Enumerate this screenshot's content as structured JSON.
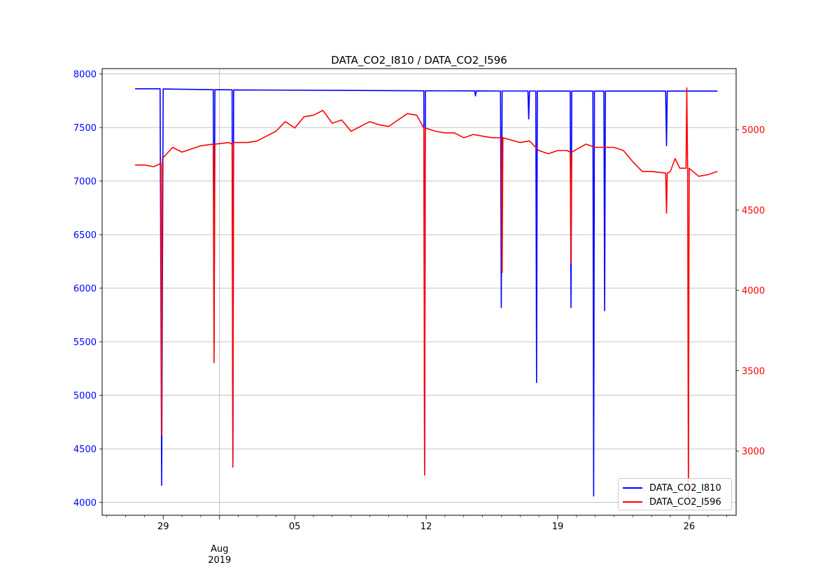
{
  "chart_data": {
    "type": "line",
    "title": "DATA_CO2_I810 / DATA_CO2_I596",
    "xlabel": "",
    "x_range": [
      "2019-07-25T18:00",
      "2019-08-28T12:00"
    ],
    "x_major_ticks": [
      {
        "date": "2019-07-29",
        "label": "29"
      },
      {
        "date": "2019-08-01",
        "label": "Aug\n2019"
      },
      {
        "date": "2019-08-05",
        "label": "05"
      },
      {
        "date": "2019-08-12",
        "label": "12"
      },
      {
        "date": "2019-08-19",
        "label": "19"
      },
      {
        "date": "2019-08-26",
        "label": "26"
      }
    ],
    "y_left": {
      "range": [
        3880,
        8050
      ],
      "ticks": [
        4000,
        4500,
        5000,
        5500,
        6000,
        6500,
        7000,
        7500,
        8000
      ],
      "color": "#0000ff"
    },
    "y_right": {
      "range": [
        2600,
        5380
      ],
      "ticks": [
        3000,
        3500,
        4000,
        4500,
        5000
      ],
      "color": "#ff0000"
    },
    "grid": true,
    "legend_position": "lower-right",
    "series": [
      {
        "name": "DATA_CO2_I810",
        "color": "#0000ff",
        "axis": "left",
        "points": [
          [
            "2019-07-27T12:00",
            7862
          ],
          [
            "2019-07-28T20:00",
            7862
          ],
          [
            "2019-07-28T22:00",
            4160
          ],
          [
            "2019-07-29T00:00",
            7860
          ],
          [
            "2019-07-31T16:00",
            7853
          ],
          [
            "2019-07-31T17:00",
            5500
          ],
          [
            "2019-07-31T18:00",
            7853
          ],
          [
            "2019-08-01T16:00",
            7852
          ],
          [
            "2019-08-01T17:00",
            4400
          ],
          [
            "2019-08-01T18:00",
            7851
          ],
          [
            "2019-08-11T21:00",
            7843
          ],
          [
            "2019-08-11T22:00",
            4300
          ],
          [
            "2019-08-11T23:00",
            7843
          ],
          [
            "2019-08-14T14:00",
            7842
          ],
          [
            "2019-08-14T15:00",
            7795
          ],
          [
            "2019-08-14T16:00",
            7842
          ],
          [
            "2019-08-15T23:00",
            7841
          ],
          [
            "2019-08-16T00:00",
            5820
          ],
          [
            "2019-08-16T01:00",
            7841
          ],
          [
            "2019-08-17T10:00",
            7841
          ],
          [
            "2019-08-17T11:00",
            7580
          ],
          [
            "2019-08-17T12:00",
            7841
          ],
          [
            "2019-08-17T20:00",
            7841
          ],
          [
            "2019-08-17T21:00",
            5120
          ],
          [
            "2019-08-17T22:00",
            7841
          ],
          [
            "2019-08-19T16:00",
            7840
          ],
          [
            "2019-08-19T17:00",
            5820
          ],
          [
            "2019-08-19T18:00",
            7840
          ],
          [
            "2019-08-20T21:00",
            7840
          ],
          [
            "2019-08-20T22:00",
            4060
          ],
          [
            "2019-08-20T23:00",
            7840
          ],
          [
            "2019-08-21T11:00",
            7840
          ],
          [
            "2019-08-21T12:00",
            5790
          ],
          [
            "2019-08-21T13:00",
            7840
          ],
          [
            "2019-08-24T18:00",
            7840
          ],
          [
            "2019-08-24T19:00",
            7330
          ],
          [
            "2019-08-24T20:00",
            7840
          ],
          [
            "2019-08-27T12:00",
            7840
          ]
        ]
      },
      {
        "name": "DATA_CO2_I596",
        "color": "#ff0000",
        "axis": "right",
        "points": [
          [
            "2019-07-27T12:00",
            4780
          ],
          [
            "2019-07-28T00:00",
            4780
          ],
          [
            "2019-07-28T12:00",
            4770
          ],
          [
            "2019-07-28T21:00",
            4790
          ],
          [
            "2019-07-28T22:00",
            3100
          ],
          [
            "2019-07-28T23:00",
            4820
          ],
          [
            "2019-07-29T12:00",
            4890
          ],
          [
            "2019-07-30T00:00",
            4860
          ],
          [
            "2019-07-30T12:00",
            4880
          ],
          [
            "2019-07-31T00:00",
            4900
          ],
          [
            "2019-07-31T16:00",
            4910
          ],
          [
            "2019-07-31T17:00",
            3550
          ],
          [
            "2019-07-31T18:00",
            4910
          ],
          [
            "2019-08-01T12:00",
            4920
          ],
          [
            "2019-08-01T16:00",
            4910
          ],
          [
            "2019-08-01T17:00",
            2900
          ],
          [
            "2019-08-01T18:00",
            4920
          ],
          [
            "2019-08-02T12:00",
            4920
          ],
          [
            "2019-08-03T00:00",
            4930
          ],
          [
            "2019-08-03T12:00",
            4960
          ],
          [
            "2019-08-04T00:00",
            4990
          ],
          [
            "2019-08-04T12:00",
            5050
          ],
          [
            "2019-08-05T00:00",
            5010
          ],
          [
            "2019-08-05T12:00",
            5080
          ],
          [
            "2019-08-06T00:00",
            5090
          ],
          [
            "2019-08-06T12:00",
            5120
          ],
          [
            "2019-08-07T00:00",
            5040
          ],
          [
            "2019-08-07T12:00",
            5060
          ],
          [
            "2019-08-08T00:00",
            4990
          ],
          [
            "2019-08-08T12:00",
            5020
          ],
          [
            "2019-08-09T00:00",
            5050
          ],
          [
            "2019-08-09T12:00",
            5030
          ],
          [
            "2019-08-10T00:00",
            5020
          ],
          [
            "2019-08-10T12:00",
            5060
          ],
          [
            "2019-08-11T00:00",
            5100
          ],
          [
            "2019-08-11T12:00",
            5090
          ],
          [
            "2019-08-11T21:00",
            5010
          ],
          [
            "2019-08-11T22:00",
            2850
          ],
          [
            "2019-08-11T23:00",
            5010
          ],
          [
            "2019-08-12T12:00",
            4990
          ],
          [
            "2019-08-13T00:00",
            4980
          ],
          [
            "2019-08-13T12:00",
            4980
          ],
          [
            "2019-08-14T00:00",
            4950
          ],
          [
            "2019-08-14T12:00",
            4970
          ],
          [
            "2019-08-15T00:00",
            4960
          ],
          [
            "2019-08-15T12:00",
            4950
          ],
          [
            "2019-08-16T00:00",
            4950
          ],
          [
            "2019-08-16T01:00",
            4110
          ],
          [
            "2019-08-16T02:00",
            4950
          ],
          [
            "2019-08-17T00:00",
            4920
          ],
          [
            "2019-08-17T12:00",
            4930
          ],
          [
            "2019-08-18T00:00",
            4870
          ],
          [
            "2019-08-18T12:00",
            4850
          ],
          [
            "2019-08-19T00:00",
            4870
          ],
          [
            "2019-08-19T12:00",
            4870
          ],
          [
            "2019-08-19T16:00",
            4860
          ],
          [
            "2019-08-19T17:00",
            4170
          ],
          [
            "2019-08-19T18:00",
            4860
          ],
          [
            "2019-08-20T12:00",
            4910
          ],
          [
            "2019-08-21T00:00",
            4890
          ],
          [
            "2019-08-21T12:00",
            4890
          ],
          [
            "2019-08-22T00:00",
            4890
          ],
          [
            "2019-08-22T12:00",
            4870
          ],
          [
            "2019-08-23T00:00",
            4800
          ],
          [
            "2019-08-23T12:00",
            4740
          ],
          [
            "2019-08-24T00:00",
            4740
          ],
          [
            "2019-08-24T18:00",
            4730
          ],
          [
            "2019-08-24T19:00",
            4480
          ],
          [
            "2019-08-24T20:00",
            4730
          ],
          [
            "2019-08-25T00:00",
            4740
          ],
          [
            "2019-08-25T06:00",
            4820
          ],
          [
            "2019-08-25T12:00",
            4760
          ],
          [
            "2019-08-25T20:00",
            4760
          ],
          [
            "2019-08-25T21:00",
            5260
          ],
          [
            "2019-08-25T22:00",
            4750
          ],
          [
            "2019-08-25T23:00",
            2700
          ],
          [
            "2019-08-26T00:00",
            4760
          ],
          [
            "2019-08-26T12:00",
            4710
          ],
          [
            "2019-08-27T00:00",
            4720
          ],
          [
            "2019-08-27T12:00",
            4740
          ]
        ]
      }
    ]
  }
}
